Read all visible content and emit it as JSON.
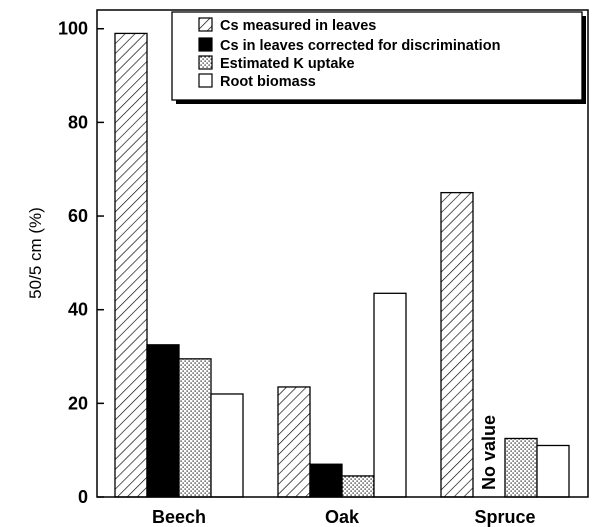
{
  "chart_data": {
    "type": "bar",
    "title": "",
    "xlabel": "",
    "ylabel": "50/5 cm (%)",
    "ylim": [
      0,
      104
    ],
    "yticks": [
      0,
      20,
      40,
      60,
      80,
      100
    ],
    "categories": [
      "Beech",
      "Oak",
      "Spruce"
    ],
    "series": [
      {
        "name": "Cs measured in leaves",
        "pattern": "hatch",
        "values": [
          99,
          23.5,
          65
        ]
      },
      {
        "name": "Cs in leaves corrected for discrimination",
        "pattern": "solid-black",
        "values": [
          32.5,
          7,
          null
        ]
      },
      {
        "name": "Estimated K uptake",
        "pattern": "dotted",
        "values": [
          29.5,
          4.5,
          12.5
        ]
      },
      {
        "name": "Root biomass",
        "pattern": "white",
        "values": [
          22,
          43.5,
          11
        ]
      }
    ],
    "annotations": [
      {
        "text": "No value",
        "category": "Spruce",
        "series": "Cs in leaves corrected for discrimination"
      }
    ],
    "legend_position": "top-right",
    "grid": false
  }
}
